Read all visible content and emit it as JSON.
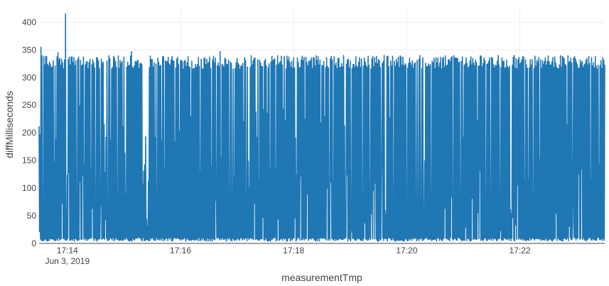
{
  "chart_data": {
    "type": "line",
    "title": "",
    "xlabel": "measurementTmp",
    "ylabel": "diffMilliseconds",
    "x_range": [
      "2019-06-03 17:13:30",
      "2019-06-03 17:23:30"
    ],
    "ylim": [
      0,
      430
    ],
    "x_ticks": [
      {
        "value": "2019-06-03 17:14",
        "label": "17:14"
      },
      {
        "value": "2019-06-03 17:16",
        "label": "17:16"
      },
      {
        "value": "2019-06-03 17:18",
        "label": "17:18"
      },
      {
        "value": "2019-06-03 17:20",
        "label": "17:20"
      },
      {
        "value": "2019-06-03 17:22",
        "label": "17:22"
      }
    ],
    "x_date_label": "Jun 3, 2019",
    "y_ticks": [
      0,
      50,
      100,
      150,
      200,
      250,
      300,
      350,
      400
    ],
    "grid": true,
    "line_color": "#1f77b4",
    "series": [
      {
        "sampling": "one sample approx. every 0.5 s, alternating between high and low values",
        "baseline_ms": 7,
        "typical_peak_ms": [
          315,
          340
        ],
        "notable_points": [
          {
            "x": "2019-06-03 17:13:32",
            "y": 355
          },
          {
            "x": "2019-06-03 17:13:50",
            "y": 345
          },
          {
            "x": "2019-06-03 17:13:58",
            "y": 415
          },
          {
            "x": "2019-06-03 17:15:08",
            "y": 347
          },
          {
            "x": "2019-06-03 17:16:42",
            "y": 347
          }
        ]
      }
    ]
  }
}
